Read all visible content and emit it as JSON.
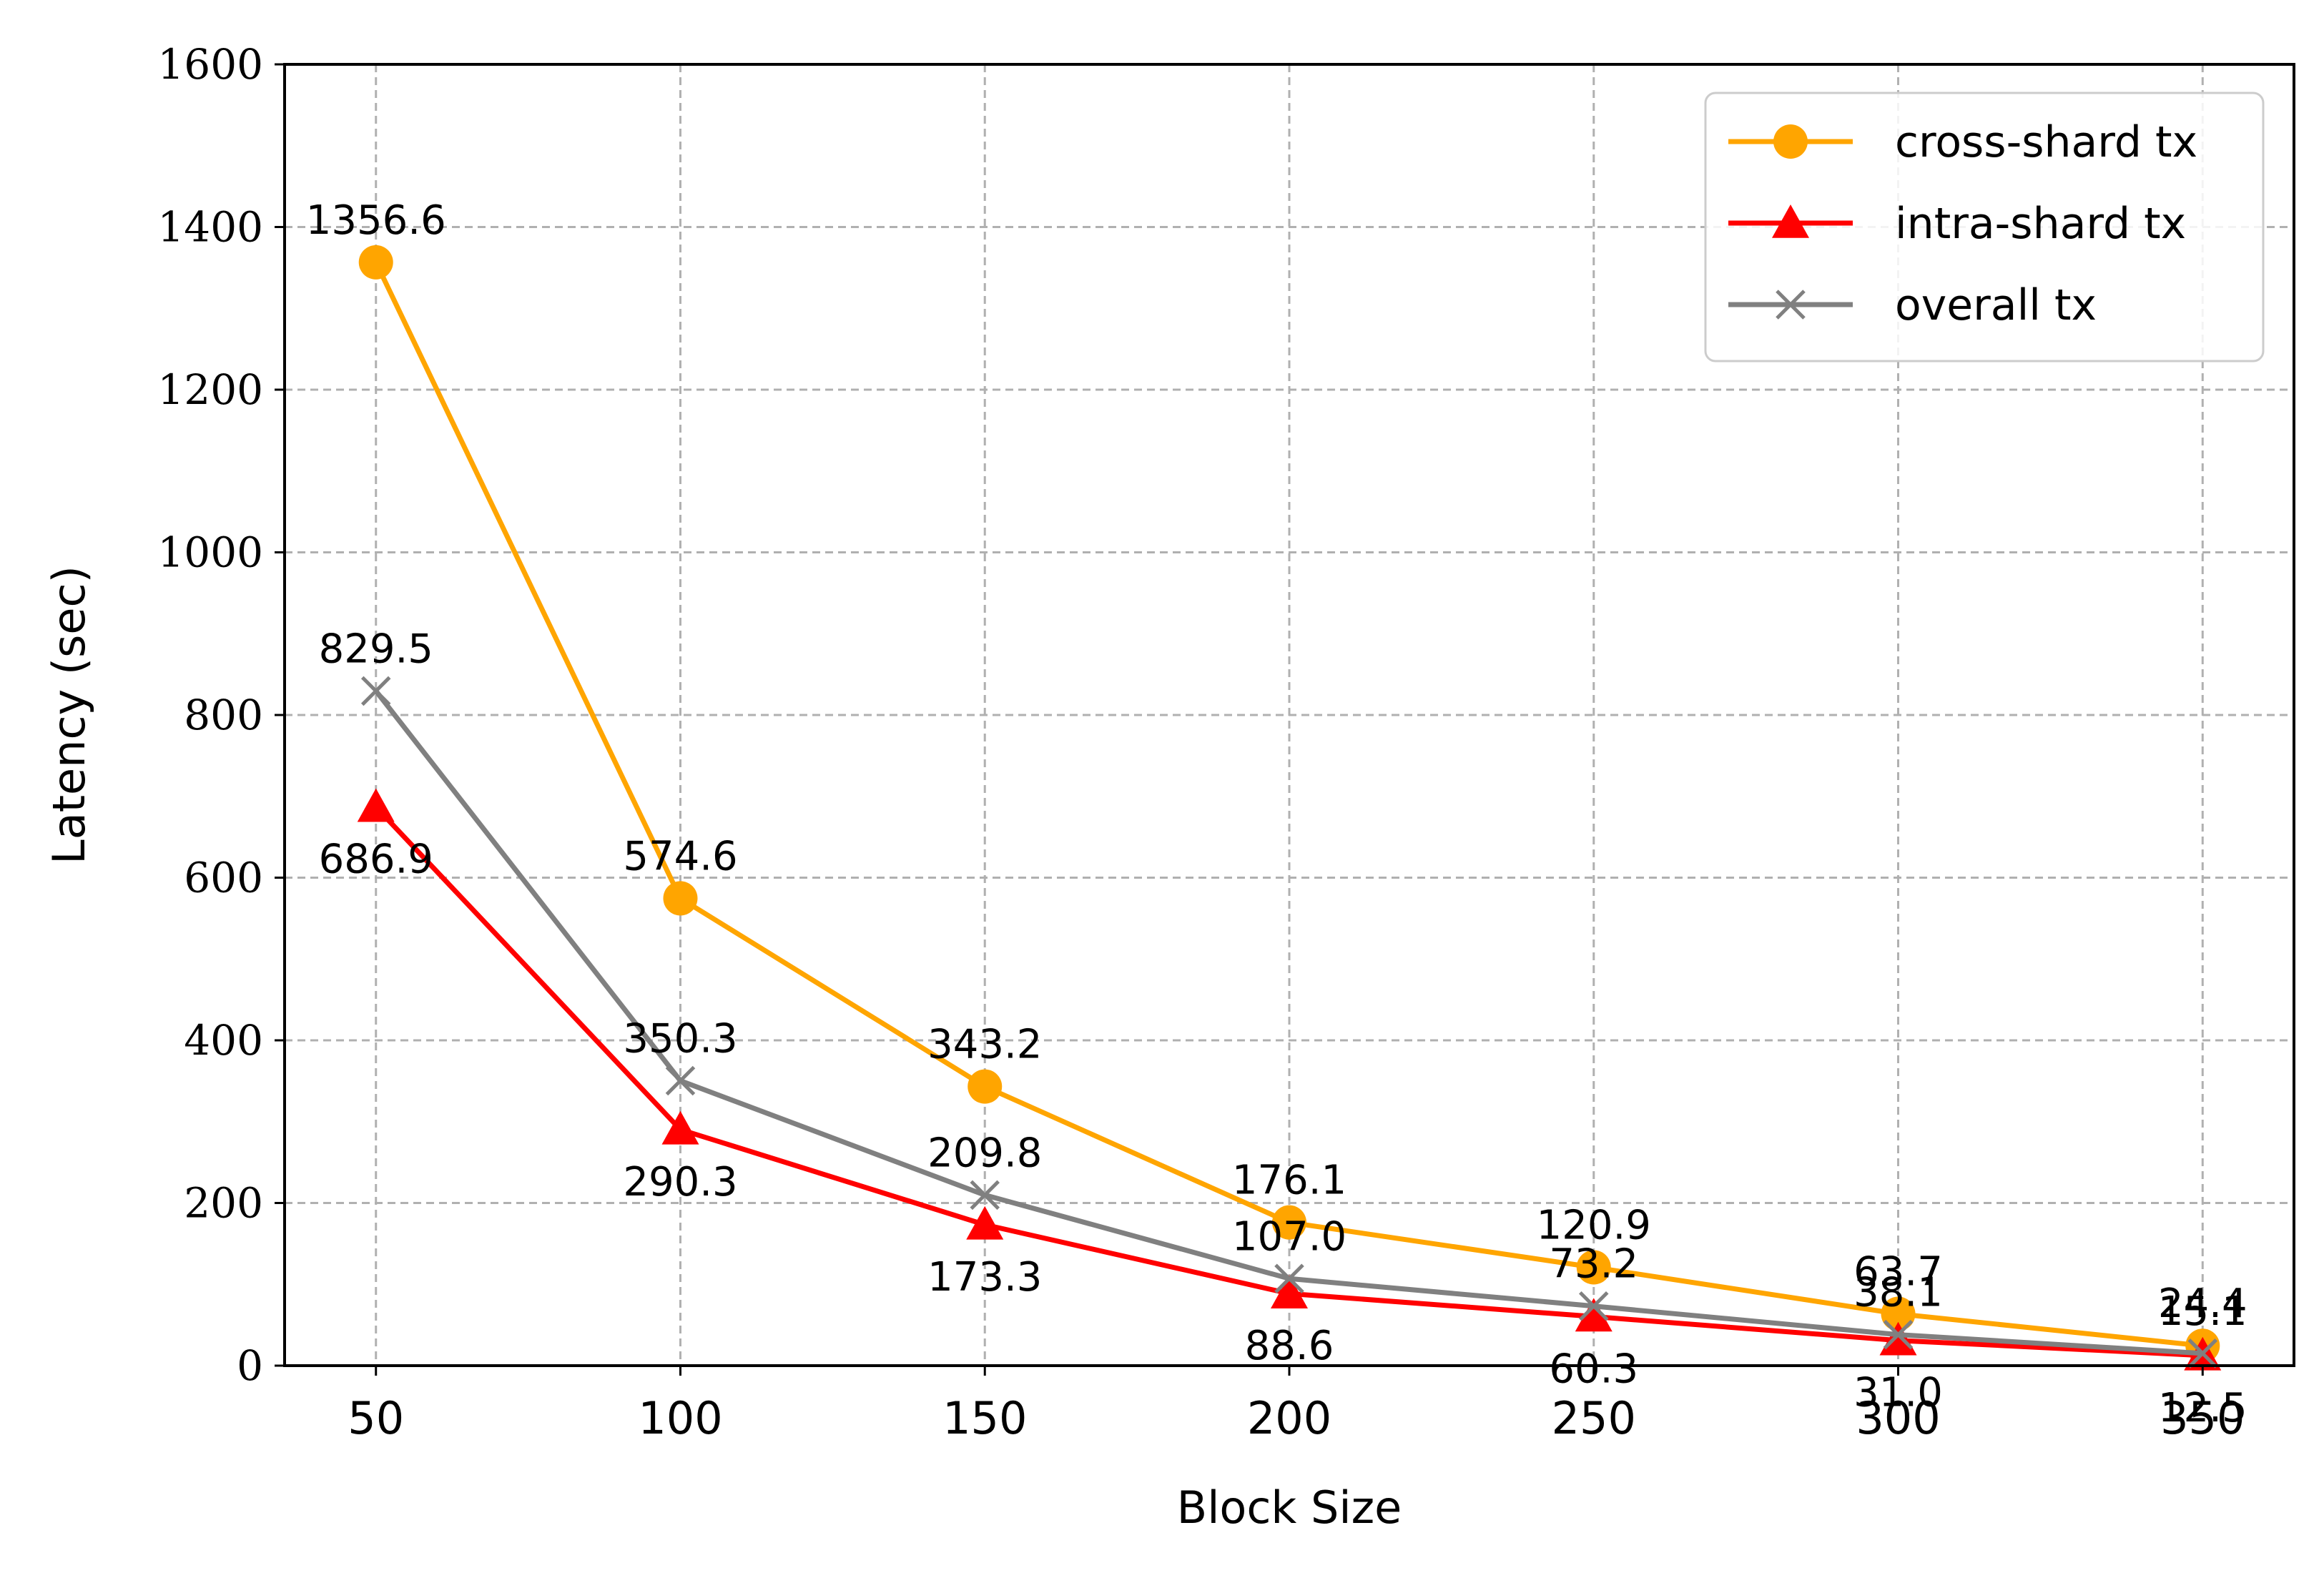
{
  "chart_data": {
    "type": "line",
    "xlabel": "Block Size",
    "ylabel": "Latency (sec)",
    "x": [
      50,
      100,
      150,
      200,
      250,
      300,
      350
    ],
    "xticks": [
      "50",
      "100",
      "150",
      "200",
      "250",
      "300",
      "350"
    ],
    "yticks": [
      "0",
      "200",
      "400",
      "600",
      "800",
      "1000",
      "1200",
      "1400",
      "1600"
    ],
    "ylim": [
      0,
      1600
    ],
    "xlim": [
      35,
      365
    ],
    "grid": true,
    "legend_position": "top-right",
    "series": [
      {
        "name": "cross-shard tx",
        "color": "#FFA500",
        "marker": "circle",
        "values": [
          1356.6,
          574.6,
          343.2,
          176.1,
          120.9,
          63.7,
          24.4
        ],
        "labels": [
          "1356.6",
          "574.6",
          "343.2",
          "176.1",
          "120.9",
          "63.7",
          "24.4"
        ],
        "label_side": [
          "above",
          "above",
          "above",
          "above",
          "above",
          "above",
          "above"
        ]
      },
      {
        "name": "intra-shard tx",
        "color": "#FF0000",
        "marker": "triangle",
        "values": [
          686.9,
          290.3,
          173.3,
          88.6,
          60.3,
          31.0,
          12.5
        ],
        "labels": [
          "686.9",
          "290.3",
          "173.3",
          "88.6",
          "60.3",
          "31.0",
          "12.5"
        ],
        "label_side": [
          "below",
          "below",
          "below",
          "below",
          "below",
          "below",
          "below"
        ]
      },
      {
        "name": "overall tx",
        "color": "#808080",
        "marker": "x",
        "values": [
          829.5,
          350.3,
          209.8,
          107.0,
          73.2,
          38.1,
          15.1
        ],
        "labels": [
          "829.5",
          "350.3",
          "209.8",
          "107.0",
          "73.2",
          "38.1",
          "15.1"
        ],
        "label_side": [
          "above",
          "above",
          "above",
          "above",
          "above",
          "above",
          "above"
        ]
      }
    ]
  }
}
